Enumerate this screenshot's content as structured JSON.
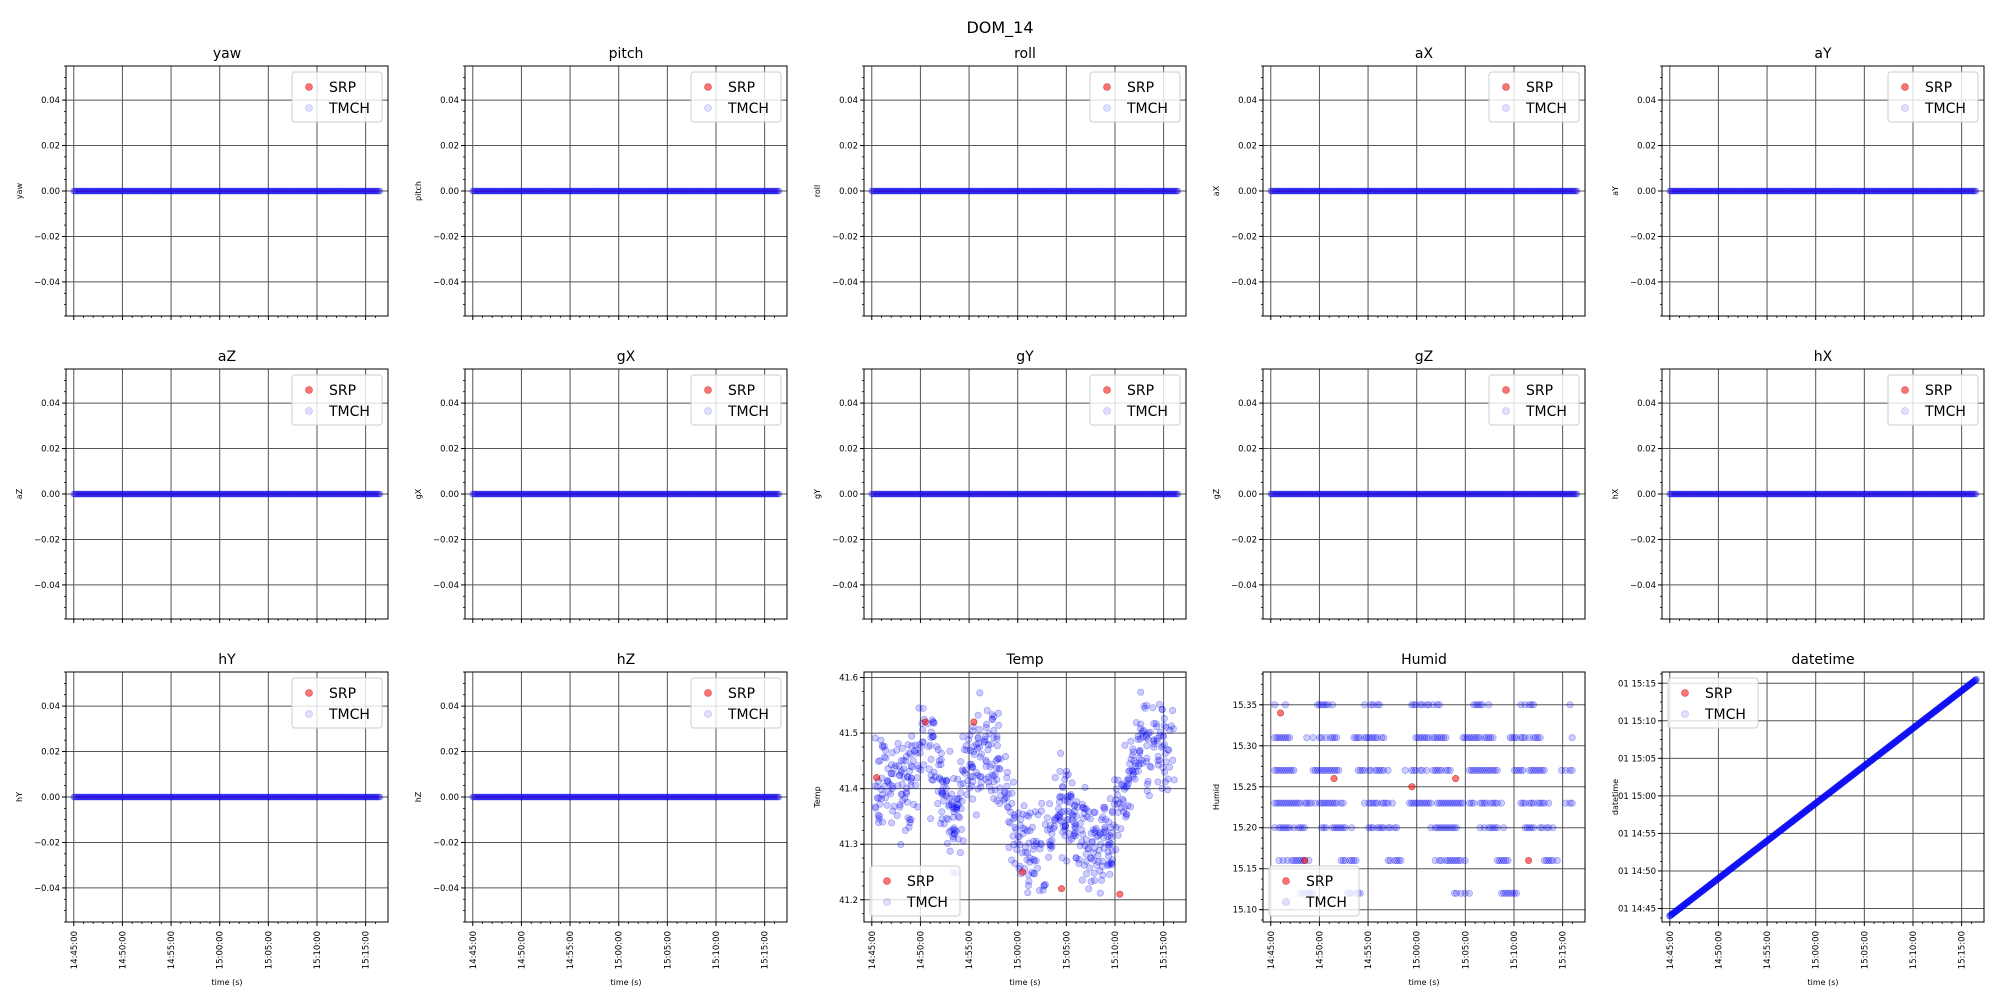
{
  "chart_data": {
    "type": "scatter",
    "title": "DOM_14",
    "legend": [
      "SRP",
      "TMCH"
    ],
    "series_colors": {
      "SRP": "#ff0000",
      "TMCH": "#0000ff"
    },
    "xlabel": "time (s)",
    "x_tick_labels": [
      "14:45:00",
      "14:50:00",
      "14:55:00",
      "15:00:00",
      "15:05:00",
      "15:10:00",
      "15:15:00"
    ],
    "x_range": [
      "14:45:00",
      "15:16:30"
    ],
    "grid": true,
    "subplots": [
      {
        "title": "yaw",
        "ylabel": "yaw",
        "kind": "zero",
        "ylim": [
          -0.055,
          0.055
        ],
        "yticks": [
          "0.04",
          "0.02",
          "0.00",
          "−0.02",
          "−0.04"
        ],
        "yvals": [
          0.04,
          0.02,
          0,
          -0.02,
          -0.04
        ],
        "legend_loc": "upper right",
        "show_xticks": false
      },
      {
        "title": "pitch",
        "ylabel": "pitch",
        "kind": "zero",
        "ylim": [
          -0.055,
          0.055
        ],
        "yticks": [
          "0.04",
          "0.02",
          "0.00",
          "−0.02",
          "−0.04"
        ],
        "yvals": [
          0.04,
          0.02,
          0,
          -0.02,
          -0.04
        ],
        "legend_loc": "upper right",
        "show_xticks": false
      },
      {
        "title": "roll",
        "ylabel": "roll",
        "kind": "zero",
        "ylim": [
          -0.055,
          0.055
        ],
        "yticks": [
          "0.04",
          "0.02",
          "0.00",
          "−0.02",
          "−0.04"
        ],
        "yvals": [
          0.04,
          0.02,
          0,
          -0.02,
          -0.04
        ],
        "legend_loc": "upper right",
        "show_xticks": false
      },
      {
        "title": "aX",
        "ylabel": "aX",
        "kind": "zero",
        "ylim": [
          -0.055,
          0.055
        ],
        "yticks": [
          "0.04",
          "0.02",
          "0.00",
          "−0.02",
          "−0.04"
        ],
        "yvals": [
          0.04,
          0.02,
          0,
          -0.02,
          -0.04
        ],
        "legend_loc": "upper right",
        "show_xticks": false
      },
      {
        "title": "aY",
        "ylabel": "aY",
        "kind": "zero",
        "ylim": [
          -0.055,
          0.055
        ],
        "yticks": [
          "0.04",
          "0.02",
          "0.00",
          "−0.02",
          "−0.04"
        ],
        "yvals": [
          0.04,
          0.02,
          0,
          -0.02,
          -0.04
        ],
        "legend_loc": "upper right",
        "show_xticks": false
      },
      {
        "title": "aZ",
        "ylabel": "aZ",
        "kind": "zero",
        "ylim": [
          -0.055,
          0.055
        ],
        "yticks": [
          "0.04",
          "0.02",
          "0.00",
          "−0.02",
          "−0.04"
        ],
        "yvals": [
          0.04,
          0.02,
          0,
          -0.02,
          -0.04
        ],
        "legend_loc": "upper right",
        "show_xticks": false
      },
      {
        "title": "gX",
        "ylabel": "gX",
        "kind": "zero",
        "ylim": [
          -0.055,
          0.055
        ],
        "yticks": [
          "0.04",
          "0.02",
          "0.00",
          "−0.02",
          "−0.04"
        ],
        "yvals": [
          0.04,
          0.02,
          0,
          -0.02,
          -0.04
        ],
        "legend_loc": "upper right",
        "show_xticks": false
      },
      {
        "title": "gY",
        "ylabel": "gY",
        "kind": "zero",
        "ylim": [
          -0.055,
          0.055
        ],
        "yticks": [
          "0.04",
          "0.02",
          "0.00",
          "−0.02",
          "−0.04"
        ],
        "yvals": [
          0.04,
          0.02,
          0,
          -0.02,
          -0.04
        ],
        "legend_loc": "upper right",
        "show_xticks": false
      },
      {
        "title": "gZ",
        "ylabel": "gZ",
        "kind": "zero",
        "ylim": [
          -0.055,
          0.055
        ],
        "yticks": [
          "0.04",
          "0.02",
          "0.00",
          "−0.02",
          "−0.04"
        ],
        "yvals": [
          0.04,
          0.02,
          0,
          -0.02,
          -0.04
        ],
        "legend_loc": "upper right",
        "show_xticks": false
      },
      {
        "title": "hX",
        "ylabel": "hX",
        "kind": "zero",
        "ylim": [
          -0.055,
          0.055
        ],
        "yticks": [
          "0.04",
          "0.02",
          "0.00",
          "−0.02",
          "−0.04"
        ],
        "yvals": [
          0.04,
          0.02,
          0,
          -0.02,
          -0.04
        ],
        "legend_loc": "upper right",
        "show_xticks": false
      },
      {
        "title": "hY",
        "ylabel": "hY",
        "kind": "zero",
        "ylim": [
          -0.055,
          0.055
        ],
        "yticks": [
          "0.04",
          "0.02",
          "0.00",
          "−0.02",
          "−0.04"
        ],
        "yvals": [
          0.04,
          0.02,
          0,
          -0.02,
          -0.04
        ],
        "legend_loc": "upper right",
        "show_xticks": true
      },
      {
        "title": "hZ",
        "ylabel": "hZ",
        "kind": "zero",
        "ylim": [
          -0.055,
          0.055
        ],
        "yticks": [
          "0.04",
          "0.02",
          "0.00",
          "−0.02",
          "−0.04"
        ],
        "yvals": [
          0.04,
          0.02,
          0,
          -0.02,
          -0.04
        ],
        "legend_loc": "upper right",
        "show_xticks": true
      },
      {
        "title": "Temp",
        "ylabel": "Temp",
        "kind": "noisy",
        "ylim": [
          41.16,
          41.61
        ],
        "yticks": [
          "41.6",
          "41.5",
          "41.4",
          "41.3",
          "41.2"
        ],
        "yvals": [
          41.6,
          41.5,
          41.4,
          41.3,
          41.2
        ],
        "legend_loc": "lower left",
        "show_xticks": true,
        "srp_points": [
          [
            0.5,
            41.42
          ],
          [
            5.5,
            41.52
          ],
          [
            10.5,
            41.52
          ],
          [
            15.5,
            41.25
          ],
          [
            19.5,
            41.22
          ],
          [
            25.5,
            41.21
          ]
        ],
        "trend": [
          [
            0,
            41.38
          ],
          [
            2,
            41.4
          ],
          [
            4,
            41.42
          ],
          [
            5.5,
            41.48
          ],
          [
            7,
            41.43
          ],
          [
            8.5,
            41.33
          ],
          [
            10.5,
            41.46
          ],
          [
            12,
            41.48
          ],
          [
            13.5,
            41.42
          ],
          [
            15,
            41.32
          ],
          [
            16.5,
            41.29
          ],
          [
            18,
            41.3
          ],
          [
            19.5,
            41.38
          ],
          [
            21,
            41.33
          ],
          [
            22.5,
            41.27
          ],
          [
            24,
            41.3
          ],
          [
            25.5,
            41.36
          ],
          [
            26.5,
            41.42
          ],
          [
            27.5,
            41.48
          ]
        ]
      },
      {
        "title": "Humid",
        "ylabel": "Humid",
        "kind": "humid",
        "ylim": [
          15.085,
          15.39
        ],
        "yticks": [
          "15.35",
          "15.30",
          "15.25",
          "15.20",
          "15.15",
          "15.10"
        ],
        "yvals": [
          15.35,
          15.3,
          15.25,
          15.2,
          15.15,
          15.1
        ],
        "legend_loc": "lower left",
        "show_xticks": true,
        "srp_points": [
          [
            1.0,
            15.34
          ],
          [
            3.5,
            15.16
          ],
          [
            6.5,
            15.26
          ],
          [
            14.5,
            15.25
          ],
          [
            19.0,
            15.26
          ],
          [
            26.5,
            15.16
          ]
        ],
        "levels": [
          15.35,
          15.31,
          15.27,
          15.23,
          15.2,
          15.16,
          15.12
        ]
      },
      {
        "title": "datetime",
        "ylabel": "datetime",
        "kind": "line",
        "ylim": [
          "01 14:44",
          "01 15:17"
        ],
        "yticks": [
          "01 15:15",
          "01 15:10",
          "01 15:05",
          "01 15:00",
          "01 14:55",
          "01 14:50",
          "01 14:45"
        ],
        "yvals": [
          31,
          26,
          21,
          16,
          11,
          6,
          1
        ],
        "legend_loc": "upper left",
        "show_xticks": true
      }
    ]
  }
}
